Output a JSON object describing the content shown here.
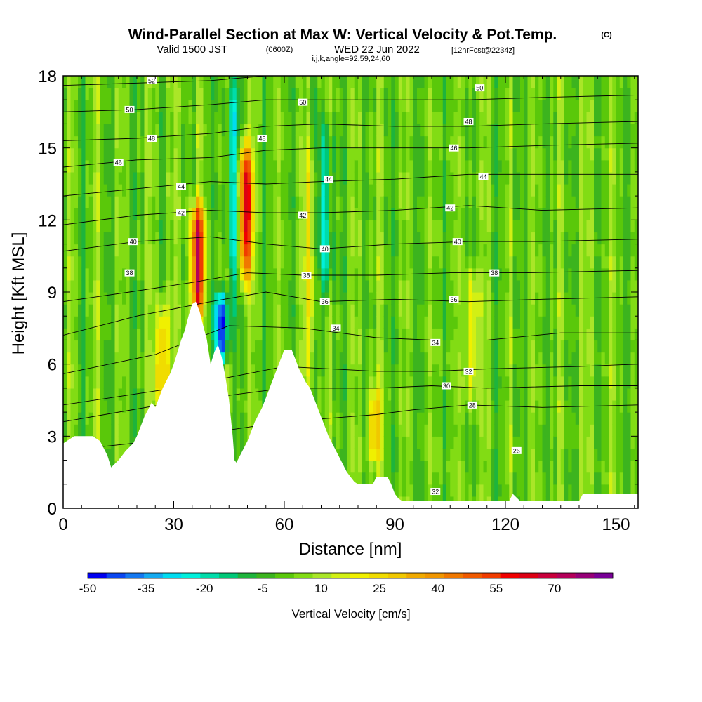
{
  "title": {
    "main": "Wind-Parallel Section at Max W: Vertical Velocity & Pot.Temp.",
    "copyright": "(C)",
    "valid_prefix": "Valid 1500 JST",
    "valid_utc": "(0600Z)",
    "valid_date": "WED 22 Jun 2022",
    "forecast_info": "[12hrFcst@2234z]",
    "indices": "i,j,k,angle=92,59,24,60"
  },
  "chart_data": {
    "type": "heatmap",
    "xlabel": "Distance [nm]",
    "ylabel": "Height [Kft MSL]",
    "xlim": [
      0,
      156
    ],
    "ylim": [
      0,
      18
    ],
    "x_ticks": [
      "0",
      "30",
      "60",
      "90",
      "120",
      "150"
    ],
    "y_ticks": [
      "0",
      "3",
      "6",
      "9",
      "12",
      "15",
      "18"
    ],
    "colorbar": {
      "title": "Vertical Velocity [cm/s]",
      "tick_labels": [
        "-50",
        "-35",
        "-20",
        "-5",
        "10",
        "25",
        "40",
        "55",
        "70"
      ],
      "min": -50,
      "max": 85,
      "step": 5,
      "colors": [
        "#0000f0",
        "#0a46f0",
        "#1478f0",
        "#14aaf0",
        "#00dcf0",
        "#00f0dc",
        "#00dcaa",
        "#00c878",
        "#1eb43c",
        "#3cb41e",
        "#5ac80a",
        "#82dc14",
        "#aae628",
        "#d2f014",
        "#f0f000",
        "#f0dc00",
        "#f0c800",
        "#f0aa00",
        "#f09600",
        "#f07800",
        "#f05a00",
        "#f03c00",
        "#f00000",
        "#dc0014",
        "#c8003c",
        "#b4005a",
        "#960078",
        "#780096"
      ]
    },
    "background_range": [
      -8,
      15
    ],
    "updraft_cores": [
      {
        "x": 36.5,
        "z_bottom": 8.5,
        "z_top": 12.2,
        "w": 70
      },
      {
        "x": 49.5,
        "z_bottom": 10.0,
        "z_top": 14.8,
        "w": 70
      },
      {
        "x": 27.0,
        "z_bottom": 4.5,
        "z_top": 8.0,
        "w": 40
      },
      {
        "x": 67.0,
        "z_bottom": 5.8,
        "z_top": 15.0,
        "w": 25
      },
      {
        "x": 111.0,
        "z_bottom": 5.0,
        "z_top": 9.5,
        "w": 25
      },
      {
        "x": 84.5,
        "z_bottom": 2.5,
        "z_top": 4.5,
        "w": 35
      }
    ],
    "downdraft_cores": [
      {
        "x": 43.0,
        "z_bottom": 6.5,
        "z_top": 8.5,
        "w": -45
      },
      {
        "x": 71.0,
        "z_bottom": 9.0,
        "z_top": 15.5,
        "w": -20
      },
      {
        "x": 46.0,
        "z_bottom": 9.0,
        "z_top": 18.0,
        "w": -20
      }
    ],
    "terrain": [
      [
        0,
        2.7
      ],
      [
        3,
        3.0
      ],
      [
        8,
        3.0
      ],
      [
        10,
        2.8
      ],
      [
        12,
        2.2
      ],
      [
        13,
        1.7
      ],
      [
        15,
        2.0
      ],
      [
        17,
        2.4
      ],
      [
        19,
        2.7
      ],
      [
        20,
        3.0
      ],
      [
        21,
        3.4
      ],
      [
        22,
        3.8
      ],
      [
        23,
        4.1
      ],
      [
        24,
        4.4
      ],
      [
        25,
        4.2
      ],
      [
        26,
        4.6
      ],
      [
        27,
        5.0
      ],
      [
        28,
        5.3
      ],
      [
        29,
        5.6
      ],
      [
        30,
        6.0
      ],
      [
        31,
        6.5
      ],
      [
        32,
        7.0
      ],
      [
        33,
        7.4
      ],
      [
        34,
        8.0
      ],
      [
        35,
        8.5
      ],
      [
        36,
        8.6
      ],
      [
        37,
        8.2
      ],
      [
        38,
        7.6
      ],
      [
        39,
        7.0
      ],
      [
        40,
        6.0
      ],
      [
        41,
        6.5
      ],
      [
        42,
        6.8
      ],
      [
        43,
        6.3
      ],
      [
        44,
        5.5
      ],
      [
        45,
        4.5
      ],
      [
        46,
        3.0
      ],
      [
        46.5,
        2.0
      ],
      [
        47,
        1.9
      ],
      [
        48,
        2.2
      ],
      [
        49,
        2.5
      ],
      [
        50,
        2.8
      ],
      [
        51,
        3.2
      ],
      [
        52,
        3.6
      ],
      [
        53,
        3.9
      ],
      [
        54,
        4.2
      ],
      [
        55,
        4.6
      ],
      [
        56,
        5.0
      ],
      [
        57,
        5.4
      ],
      [
        58,
        5.8
      ],
      [
        59,
        6.2
      ],
      [
        60,
        6.6
      ],
      [
        62,
        6.6
      ],
      [
        63,
        6.2
      ],
      [
        64,
        5.8
      ],
      [
        65,
        5.5
      ],
      [
        66,
        5.2
      ],
      [
        67,
        5.0
      ],
      [
        68,
        4.6
      ],
      [
        69,
        4.2
      ],
      [
        70,
        3.8
      ],
      [
        71,
        3.4
      ],
      [
        72,
        3.0
      ],
      [
        73,
        2.7
      ],
      [
        74,
        2.4
      ],
      [
        75,
        2.1
      ],
      [
        76,
        1.8
      ],
      [
        77,
        1.5
      ],
      [
        78,
        1.3
      ],
      [
        79,
        1.1
      ],
      [
        80,
        1.0
      ],
      [
        84,
        1.0
      ],
      [
        85,
        1.3
      ],
      [
        88,
        1.3
      ],
      [
        89,
        1.0
      ],
      [
        90,
        0.6
      ],
      [
        91,
        0.4
      ],
      [
        92,
        0.3
      ],
      [
        100,
        0.3
      ],
      [
        110,
        0.3
      ],
      [
        121,
        0.3
      ],
      [
        122,
        0.6
      ],
      [
        124,
        0.3
      ],
      [
        140,
        0.3
      ],
      [
        141,
        0.6
      ],
      [
        156,
        0.6
      ]
    ],
    "pot_temp_contours": [
      {
        "label": "28",
        "points": [
          [
            0,
            2.4
          ],
          [
            25,
            2.8
          ],
          [
            60,
            3.6
          ],
          [
            85,
            3.9
          ],
          [
            95,
            4.1
          ],
          [
            110,
            4.3
          ],
          [
            130,
            4.2
          ],
          [
            156,
            4.3
          ]
        ],
        "label_at": [
          111,
          4.3
        ]
      },
      {
        "label": "30",
        "points": [
          [
            0,
            3.6
          ],
          [
            30,
            4.4
          ],
          [
            60,
            5.0
          ],
          [
            85,
            5.0
          ],
          [
            100,
            5.1
          ],
          [
            115,
            5.0
          ],
          [
            140,
            5.1
          ],
          [
            156,
            5.1
          ]
        ],
        "label_at": [
          104,
          5.1
        ]
      },
      {
        "label": "32",
        "points": [
          [
            0,
            4.3
          ],
          [
            30,
            5.0
          ],
          [
            60,
            5.9
          ],
          [
            85,
            5.7
          ],
          [
            100,
            5.7
          ],
          [
            115,
            5.8
          ],
          [
            140,
            5.9
          ],
          [
            156,
            6.0
          ]
        ],
        "label_at": [
          110,
          5.7
        ]
      },
      {
        "label": "34",
        "points": [
          [
            0,
            5.6
          ],
          [
            25,
            6.4
          ],
          [
            45,
            7.6
          ],
          [
            65,
            7.5
          ],
          [
            85,
            7.1
          ],
          [
            100,
            7.0
          ],
          [
            115,
            7.0
          ],
          [
            135,
            7.3
          ],
          [
            156,
            7.3
          ]
        ],
        "label_at": [
          74,
          7.5
        ]
      },
      {
        "label": "36",
        "points": [
          [
            0,
            7.2
          ],
          [
            20,
            8.0
          ],
          [
            40,
            8.6
          ],
          [
            55,
            9.0
          ],
          [
            70,
            8.6
          ],
          [
            90,
            8.7
          ],
          [
            110,
            8.6
          ],
          [
            130,
            8.7
          ],
          [
            156,
            8.8
          ]
        ],
        "label_at": [
          71,
          8.6
        ]
      },
      {
        "label": "38",
        "points": [
          [
            0,
            8.6
          ],
          [
            18,
            9.0
          ],
          [
            35,
            9.4
          ],
          [
            50,
            9.8
          ],
          [
            65,
            9.7
          ],
          [
            85,
            9.7
          ],
          [
            105,
            9.8
          ],
          [
            125,
            9.8
          ],
          [
            156,
            9.9
          ]
        ],
        "label_at": [
          66,
          9.7
        ]
      },
      {
        "label": "40",
        "points": [
          [
            0,
            10.7
          ],
          [
            20,
            11.1
          ],
          [
            40,
            11.3
          ],
          [
            55,
            11.0
          ],
          [
            70,
            10.8
          ],
          [
            90,
            11.0
          ],
          [
            110,
            11.1
          ],
          [
            130,
            11.1
          ],
          [
            156,
            11.2
          ]
        ],
        "label_at": [
          71,
          10.8
        ]
      },
      {
        "label": "42",
        "points": [
          [
            0,
            11.8
          ],
          [
            20,
            12.2
          ],
          [
            40,
            12.4
          ],
          [
            55,
            12.3
          ],
          [
            70,
            12.3
          ],
          [
            90,
            12.4
          ],
          [
            110,
            12.6
          ],
          [
            130,
            12.4
          ],
          [
            156,
            12.5
          ]
        ],
        "label_at": [
          65,
          12.2
        ]
      },
      {
        "label": "44",
        "points": [
          [
            0,
            13.0
          ],
          [
            20,
            13.3
          ],
          [
            40,
            13.6
          ],
          [
            55,
            13.5
          ],
          [
            70,
            13.6
          ],
          [
            90,
            13.7
          ],
          [
            110,
            13.9
          ],
          [
            130,
            13.9
          ],
          [
            156,
            13.9
          ]
        ],
        "label_at": [
          72,
          13.7
        ]
      },
      {
        "label": "46",
        "points": [
          [
            0,
            14.2
          ],
          [
            20,
            14.5
          ],
          [
            40,
            14.6
          ],
          [
            55,
            14.9
          ],
          [
            70,
            15.0
          ],
          [
            90,
            15.0
          ],
          [
            110,
            15.0
          ],
          [
            130,
            15.1
          ],
          [
            156,
            15.2
          ]
        ],
        "label_at": [
          106,
          15.0
        ]
      },
      {
        "label": "48",
        "points": [
          [
            0,
            15.3
          ],
          [
            20,
            15.4
          ],
          [
            40,
            15.6
          ],
          [
            55,
            15.9
          ],
          [
            70,
            16.0
          ],
          [
            90,
            15.9
          ],
          [
            110,
            15.9
          ],
          [
            130,
            16.0
          ],
          [
            156,
            16.1
          ]
        ],
        "label_at": [
          54,
          15.4
        ]
      },
      {
        "label": "50",
        "points": [
          [
            0,
            16.5
          ],
          [
            20,
            16.6
          ],
          [
            40,
            16.8
          ],
          [
            55,
            17.0
          ],
          [
            70,
            17.0
          ],
          [
            90,
            17.0
          ],
          [
            110,
            17.0
          ],
          [
            130,
            17.1
          ],
          [
            156,
            17.2
          ]
        ],
        "label_at": [
          65,
          16.9
        ]
      },
      {
        "label": "52",
        "points": [
          [
            0,
            17.6
          ],
          [
            20,
            17.7
          ],
          [
            40,
            17.8
          ],
          [
            55,
            18.0
          ]
        ],
        "label_at": [
          24,
          17.8
        ]
      }
    ],
    "extra_labels": [
      {
        "text": "46",
        "at": [
          15,
          14.4
        ]
      },
      {
        "text": "48",
        "at": [
          24,
          15.4
        ]
      },
      {
        "text": "50",
        "at": [
          18,
          16.6
        ]
      },
      {
        "text": "44",
        "at": [
          32,
          13.4
        ]
      },
      {
        "text": "42",
        "at": [
          32,
          12.3
        ]
      },
      {
        "text": "40",
        "at": [
          19,
          11.1
        ]
      },
      {
        "text": "38",
        "at": [
          18,
          9.8
        ]
      },
      {
        "text": "50",
        "at": [
          113,
          17.5
        ]
      },
      {
        "text": "48",
        "at": [
          110,
          16.1
        ]
      },
      {
        "text": "44",
        "at": [
          114,
          13.8
        ]
      },
      {
        "text": "42",
        "at": [
          105,
          12.5
        ]
      },
      {
        "text": "40",
        "at": [
          107,
          11.1
        ]
      },
      {
        "text": "38",
        "at": [
          117,
          9.8
        ]
      },
      {
        "text": "36",
        "at": [
          106,
          8.7
        ]
      },
      {
        "text": "34",
        "at": [
          101,
          6.9
        ]
      },
      {
        "text": "26",
        "at": [
          123,
          2.4
        ]
      },
      {
        "text": "32",
        "at": [
          101,
          0.7
        ]
      }
    ]
  }
}
